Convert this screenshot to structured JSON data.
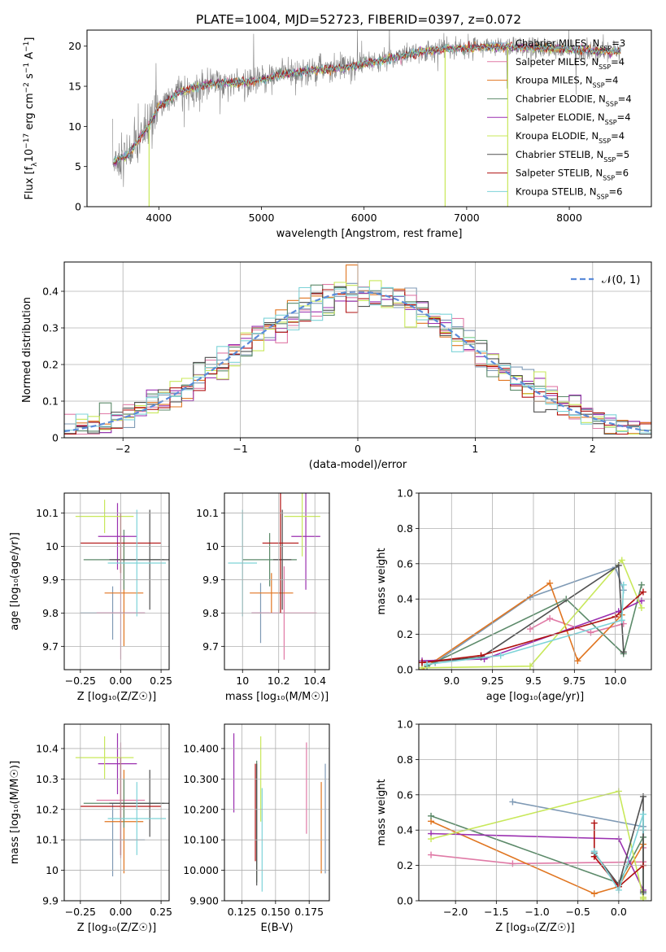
{
  "title": "PLATE=1004, MJD=52723, FIBERID=0397, z=0.072",
  "colors": [
    "#7f9ab5",
    "#e07aa6",
    "#e07520",
    "#5c8a6a",
    "#9b30b0",
    "#c8e85a",
    "#505050",
    "#b01010",
    "#7dd3d8"
  ],
  "legend": [
    {
      "label": "Chabrier MILES, N",
      "sub": "SSP",
      "rest": "=3"
    },
    {
      "label": "Salpeter MILES, N",
      "sub": "SSP",
      "rest": "=4"
    },
    {
      "label": "Kroupa MILES, N",
      "sub": "SSP",
      "rest": "=4"
    },
    {
      "label": "Chabrier ELODIE, N",
      "sub": "SSP",
      "rest": "=4"
    },
    {
      "label": "Salpeter ELODIE, N",
      "sub": "SSP",
      "rest": "=4"
    },
    {
      "label": "Kroupa ELODIE, N",
      "sub": "SSP",
      "rest": "=4"
    },
    {
      "label": "Chabrier STELIB, N",
      "sub": "SSP",
      "rest": "=5"
    },
    {
      "label": "Salpeter STELIB, N",
      "sub": "SSP",
      "rest": "=6"
    },
    {
      "label": "Kroupa STELIB, N",
      "sub": "SSP",
      "rest": "=6"
    }
  ],
  "chart_data": [
    {
      "id": "spectrum",
      "type": "line",
      "xlabel": "wavelength [Angstrom, rest frame]",
      "ylabel": "Flux [f_λ 10^-17 erg cm^-2 s^-1 A^-1]",
      "ylabel_parts": {
        "main": "Flux [f",
        "sub1": "λ",
        "mid": "10",
        "sup1": "−17",
        "mid2": " erg cm",
        "sup2": "−2",
        "mid3": " s",
        "sup3": "−1",
        "mid4": " A",
        "sup4": "−1",
        "end": "]"
      },
      "xlim": [
        3300,
        8800
      ],
      "ylim": [
        0,
        22
      ],
      "xticks": [
        4000,
        5000,
        6000,
        7000,
        8000
      ],
      "yticks": [
        0,
        5,
        10,
        15,
        20
      ],
      "continuum": {
        "x": [
          3550,
          3700,
          3900,
          4000,
          4200,
          4500,
          4800,
          5000,
          5200,
          5500,
          5800,
          6000,
          6200,
          6400,
          6600,
          6800,
          7000,
          7200,
          7400,
          7600,
          7800,
          8000,
          8300,
          8500
        ],
        "y": [
          5.5,
          6.5,
          10.0,
          12.5,
          14.3,
          15.3,
          15.5,
          15.8,
          16.5,
          17.0,
          17.3,
          17.8,
          18.3,
          18.9,
          19.4,
          19.6,
          19.8,
          19.9,
          19.9,
          19.8,
          19.7,
          19.6,
          19.4,
          19.3
        ]
      }
    },
    {
      "id": "residuals",
      "type": "histogram",
      "xlabel": "(data-model)/error",
      "ylabel": "Normed distribution",
      "xlim": [
        -2.5,
        2.5
      ],
      "ylim": [
        0,
        0.48
      ],
      "xticks": [
        -2,
        -1,
        0,
        1,
        2
      ],
      "yticks": [
        0.0,
        0.1,
        0.2,
        0.3,
        0.4
      ],
      "legend_label": "𝒩(0, 1)",
      "bin_width": 0.1
    },
    {
      "id": "age-vs-Z",
      "type": "errorbar",
      "xlabel": "Z [log₁₀(Z/Z☉)]",
      "ylabel": "age [log₁₀(age/yr)]",
      "xlim": [
        -0.35,
        0.3
      ],
      "ylim": [
        9.63,
        10.16
      ],
      "xticks": [
        -0.25,
        0.0,
        0.25
      ],
      "yticks": [
        9.7,
        9.8,
        9.9,
        10.0,
        10.1
      ],
      "points": [
        {
          "x": -0.05,
          "y": 9.8,
          "xerr": 0.2,
          "yerr": 0.08
        },
        {
          "x": 0.0,
          "y": 9.8,
          "xerr": 0.15,
          "yerr": 0.14
        },
        {
          "x": 0.02,
          "y": 9.86,
          "xerr": 0.12,
          "yerr": 0.16
        },
        {
          "x": 0.02,
          "y": 9.96,
          "xerr": 0.25,
          "yerr": 0.09
        },
        {
          "x": -0.02,
          "y": 10.03,
          "xerr": 0.12,
          "yerr": 0.1
        },
        {
          "x": -0.1,
          "y": 10.09,
          "xerr": 0.18,
          "yerr": 0.05
        },
        {
          "x": 0.18,
          "y": 9.96,
          "xerr": 0.25,
          "yerr": 0.15
        },
        {
          "x": 0.0,
          "y": 10.01,
          "xerr": 0.25,
          "yerr": 0.09
        },
        {
          "x": 0.1,
          "y": 9.95,
          "xerr": 0.18,
          "yerr": 0.16
        }
      ]
    },
    {
      "id": "age-vs-mass",
      "type": "errorbar",
      "xlabel": "mass [log₁₀(M/M☉)]",
      "ylabel": "",
      "xlim": [
        9.9,
        10.48
      ],
      "ylim": [
        9.63,
        10.16
      ],
      "xticks": [
        10.0,
        10.2,
        10.4
      ],
      "yticks": [
        9.7,
        9.8,
        9.9,
        10.0,
        10.1
      ],
      "points": [
        {
          "x": 10.1,
          "y": 9.8,
          "xerr": 0.05,
          "yerr": 0.09
        },
        {
          "x": 10.23,
          "y": 9.8,
          "xerr": 0.18,
          "yerr": 0.14
        },
        {
          "x": 10.16,
          "y": 9.86,
          "xerr": 0.12,
          "yerr": 0.06
        },
        {
          "x": 10.15,
          "y": 9.96,
          "xerr": 0.15,
          "yerr": 0.08
        },
        {
          "x": 10.35,
          "y": 10.03,
          "xerr": 0.08,
          "yerr": 0.16
        },
        {
          "x": 10.33,
          "y": 10.09,
          "xerr": 0.1,
          "yerr": 0.12
        },
        {
          "x": 10.22,
          "y": 9.96,
          "xerr": 0.05,
          "yerr": 0.15
        },
        {
          "x": 10.21,
          "y": 10.01,
          "xerr": 0.1,
          "yerr": 0.21
        },
        {
          "x": 10.0,
          "y": 9.95,
          "xerr": 0.08,
          "yerr": 0.16
        }
      ]
    },
    {
      "id": "weight-vs-age",
      "type": "line",
      "xlabel": "age [log₁₀(age/yr)]",
      "ylabel": "mass weight",
      "xlim": [
        8.8,
        10.22
      ],
      "ylim": [
        0,
        1.0
      ],
      "xticks": [
        9.0,
        9.25,
        9.5,
        9.75,
        10.0
      ],
      "yticks": [
        0.0,
        0.2,
        0.4,
        0.6,
        0.8,
        1.0
      ],
      "series": [
        {
          "x": [
            8.9,
            9.48,
            10.0,
            10.05
          ],
          "y": [
            0.04,
            0.41,
            0.58,
            0.45
          ]
        },
        {
          "x": [
            9.48,
            9.6,
            9.85,
            10.05
          ],
          "y": [
            0.23,
            0.29,
            0.21,
            0.26
          ]
        },
        {
          "x": [
            8.82,
            9.6,
            9.77,
            10.04
          ],
          "y": [
            0.0,
            0.49,
            0.05,
            0.31
          ]
        },
        {
          "x": [
            8.85,
            9.7,
            10.05,
            10.16
          ],
          "y": [
            0.02,
            0.4,
            0.09,
            0.48
          ]
        },
        {
          "x": [
            8.82,
            9.2,
            10.02,
            10.16
          ],
          "y": [
            0.05,
            0.06,
            0.33,
            0.39
          ]
        },
        {
          "x": [
            8.82,
            9.48,
            10.04,
            10.16
          ],
          "y": [
            0.01,
            0.02,
            0.62,
            0.35
          ]
        },
        {
          "x": [
            8.82,
            9.18,
            10.02,
            10.05
          ],
          "y": [
            0.04,
            0.07,
            0.59,
            0.1
          ]
        },
        {
          "x": [
            8.82,
            9.18,
            10.0,
            10.17
          ],
          "y": [
            0.04,
            0.08,
            0.3,
            0.44
          ]
        },
        {
          "x": [
            8.85,
            9.3,
            10.04,
            10.05
          ],
          "y": [
            0.03,
            0.08,
            0.28,
            0.48
          ]
        }
      ]
    },
    {
      "id": "mass-vs-Z",
      "type": "errorbar",
      "xlabel": "Z [log₁₀(Z/Z☉)]",
      "ylabel": "mass [log₁₀(M/M☉)]",
      "xlim": [
        -0.35,
        0.3
      ],
      "ylim": [
        9.9,
        10.48
      ],
      "xticks": [
        -0.25,
        0.0,
        0.25
      ],
      "yticks": [
        9.9,
        10.0,
        10.1,
        10.2,
        10.3,
        10.4
      ],
      "points": [
        {
          "x": -0.05,
          "y": 10.1,
          "xerr": 0.2,
          "yerr": 0.12
        },
        {
          "x": 0.0,
          "y": 10.23,
          "xerr": 0.15,
          "yerr": 0.19
        },
        {
          "x": 0.02,
          "y": 10.16,
          "xerr": 0.12,
          "yerr": 0.17
        },
        {
          "x": 0.02,
          "y": 10.22,
          "xerr": 0.25,
          "yerr": 0.08
        },
        {
          "x": -0.02,
          "y": 10.35,
          "xerr": 0.12,
          "yerr": 0.1
        },
        {
          "x": -0.1,
          "y": 10.37,
          "xerr": 0.18,
          "yerr": 0.07
        },
        {
          "x": 0.18,
          "y": 10.22,
          "xerr": 0.25,
          "yerr": 0.11
        },
        {
          "x": 0.0,
          "y": 10.21,
          "xerr": 0.25,
          "yerr": 0.16
        },
        {
          "x": 0.1,
          "y": 10.17,
          "xerr": 0.18,
          "yerr": 0.12
        }
      ]
    },
    {
      "id": "mass-vs-EBV",
      "type": "errorbar",
      "xlabel": "E(B-V)",
      "ylabel": "",
      "xlim": [
        0.112,
        0.19
      ],
      "ylim": [
        9.9,
        10.48
      ],
      "xticks": [
        0.125,
        0.15,
        0.175
      ],
      "yticks": [
        9.9,
        10.0,
        10.1,
        10.2,
        10.3,
        10.4
      ],
      "points": [
        {
          "x": 0.187,
          "y": 10.17,
          "xerr": 0,
          "yerr": 0.18
        },
        {
          "x": 0.173,
          "y": 10.27,
          "xerr": 0,
          "yerr": 0.15
        },
        {
          "x": 0.184,
          "y": 10.14,
          "xerr": 0,
          "yerr": 0.15
        },
        {
          "x": 0.136,
          "y": 10.16,
          "xerr": 0,
          "yerr": 0.2
        },
        {
          "x": 0.119,
          "y": 10.32,
          "xerr": 0,
          "yerr": 0.13
        },
        {
          "x": 0.139,
          "y": 10.3,
          "xerr": 0,
          "yerr": 0.14
        },
        {
          "x": 0.136,
          "y": 10.15,
          "xerr": 0,
          "yerr": 0.2
        },
        {
          "x": 0.135,
          "y": 10.19,
          "xerr": 0,
          "yerr": 0.16
        },
        {
          "x": 0.14,
          "y": 10.1,
          "xerr": 0,
          "yerr": 0.17
        }
      ]
    },
    {
      "id": "weight-vs-Z",
      "type": "line",
      "xlabel": "Z [log₁₀(Z/Z☉)]",
      "ylabel": "mass weight",
      "xlim": [
        -2.45,
        0.4
      ],
      "ylim": [
        0,
        1.0
      ],
      "xticks": [
        -2.0,
        -1.5,
        -1.0,
        -0.5,
        0.0
      ],
      "yticks": [
        0.0,
        0.2,
        0.4,
        0.6,
        0.8,
        1.0
      ],
      "series": [
        {
          "x": [
            -1.3,
            0.3,
            0.3
          ],
          "y": [
            0.56,
            0.42,
            0.04
          ]
        },
        {
          "x": [
            -2.3,
            -1.3,
            0.3,
            0.3
          ],
          "y": [
            0.26,
            0.21,
            0.22,
            0.3
          ]
        },
        {
          "x": [
            -2.3,
            -0.3,
            0.0,
            0.3
          ],
          "y": [
            0.45,
            0.04,
            0.08,
            0.32
          ]
        },
        {
          "x": [
            -2.3,
            0.0,
            0.3,
            0.3
          ],
          "y": [
            0.48,
            0.1,
            0.36,
            0.05
          ]
        },
        {
          "x": [
            -2.3,
            0.0,
            0.3,
            0.3
          ],
          "y": [
            0.38,
            0.35,
            0.06,
            0.02
          ]
        },
        {
          "x": [
            -2.3,
            0.0,
            0.3,
            0.3
          ],
          "y": [
            0.35,
            0.62,
            0.02,
            0.01
          ]
        },
        {
          "x": [
            -0.3,
            0.0,
            0.3,
            0.3
          ],
          "y": [
            0.27,
            0.09,
            0.59,
            0.05
          ]
        },
        {
          "x": [
            -0.3,
            -0.3,
            0.0,
            0.3
          ],
          "y": [
            0.44,
            0.25,
            0.08,
            0.2
          ]
        },
        {
          "x": [
            -0.3,
            0.0,
            0.3,
            0.3
          ],
          "y": [
            0.28,
            0.06,
            0.49,
            0.4
          ]
        }
      ]
    }
  ]
}
